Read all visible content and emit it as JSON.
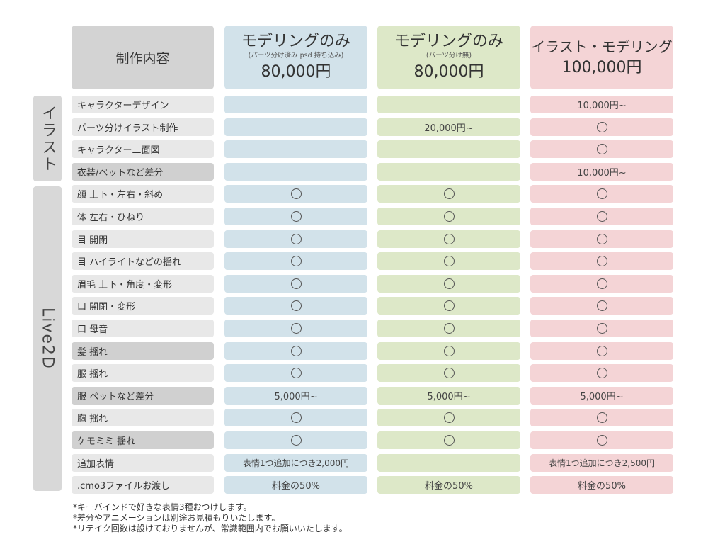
{
  "header": {
    "label": "制作内容",
    "plans": [
      {
        "title": "モデリングのみ",
        "sub": "(パーツ分け済み psd 持ち込み)",
        "price": "80,000円",
        "color": "#d2e2ea"
      },
      {
        "title": "モデリングのみ",
        "sub": "(パーツ分け無)",
        "price": "80,000円",
        "color": "#dde8c8"
      },
      {
        "title": "イラスト・モデリング",
        "sub": "",
        "price": "100,000円",
        "color": "#f4d4d6"
      }
    ]
  },
  "groups": {
    "illust": "イラスト",
    "live2d": "Live2D"
  },
  "rows": [
    {
      "label": "キャラクターデザイン",
      "values": [
        "",
        "",
        "10,000円~"
      ]
    },
    {
      "label": "パーツ分けイラスト制作",
      "values": [
        "",
        "20,000円~",
        "○"
      ]
    },
    {
      "label": "キャラクター二面図",
      "values": [
        "",
        "",
        "○"
      ]
    },
    {
      "label": "衣装/ペットなど差分",
      "values": [
        "",
        "",
        "10,000円~"
      ]
    },
    {
      "label": "顔 上下・左右・斜め",
      "values": [
        "○",
        "○",
        "○"
      ]
    },
    {
      "label": "体 左右・ひねり",
      "values": [
        "○",
        "○",
        "○"
      ]
    },
    {
      "label": "目 開閉",
      "values": [
        "○",
        "○",
        "○"
      ]
    },
    {
      "label": "目 ハイライトなどの揺れ",
      "values": [
        "○",
        "○",
        "○"
      ]
    },
    {
      "label": "眉毛 上下・角度・変形",
      "values": [
        "○",
        "○",
        "○"
      ]
    },
    {
      "label": "口 開閉・変形",
      "values": [
        "○",
        "○",
        "○"
      ]
    },
    {
      "label": "口 母音",
      "values": [
        "○",
        "○",
        "○"
      ]
    },
    {
      "label": "髪 揺れ",
      "values": [
        "○",
        "○",
        "○"
      ]
    },
    {
      "label": "服 揺れ",
      "values": [
        "○",
        "○",
        "○"
      ]
    },
    {
      "label": "服 ペットなど差分",
      "values": [
        "5,000円~",
        "5,000円~",
        "5,000円~"
      ]
    },
    {
      "label": "胸 揺れ",
      "values": [
        "○",
        "○",
        "○"
      ]
    },
    {
      "label": "ケモミミ 揺れ",
      "values": [
        "○",
        "○",
        "○"
      ]
    },
    {
      "label": "追加表情",
      "values": [
        "表情1つ追加につき2,000円",
        "",
        "表情1つ追加につき2,500円"
      ]
    },
    {
      "label": ".cmo3ファイルお渡し",
      "values": [
        "料金の50%",
        "料金の50%",
        "料金の50%"
      ]
    }
  ],
  "notes": [
    "*キーバインドで好きな表情3種おつけします。",
    "*差分やアニメーションは別途お見積もりいたします。",
    "*リテイク回数は設けておりませんが、常識範囲内でお願いいたします。"
  ],
  "colors": {
    "label_light": "#e8e8e8",
    "label_dark": "#d0d0d0",
    "header_label": "#d3d3d3",
    "side": "#d8d8d8"
  }
}
